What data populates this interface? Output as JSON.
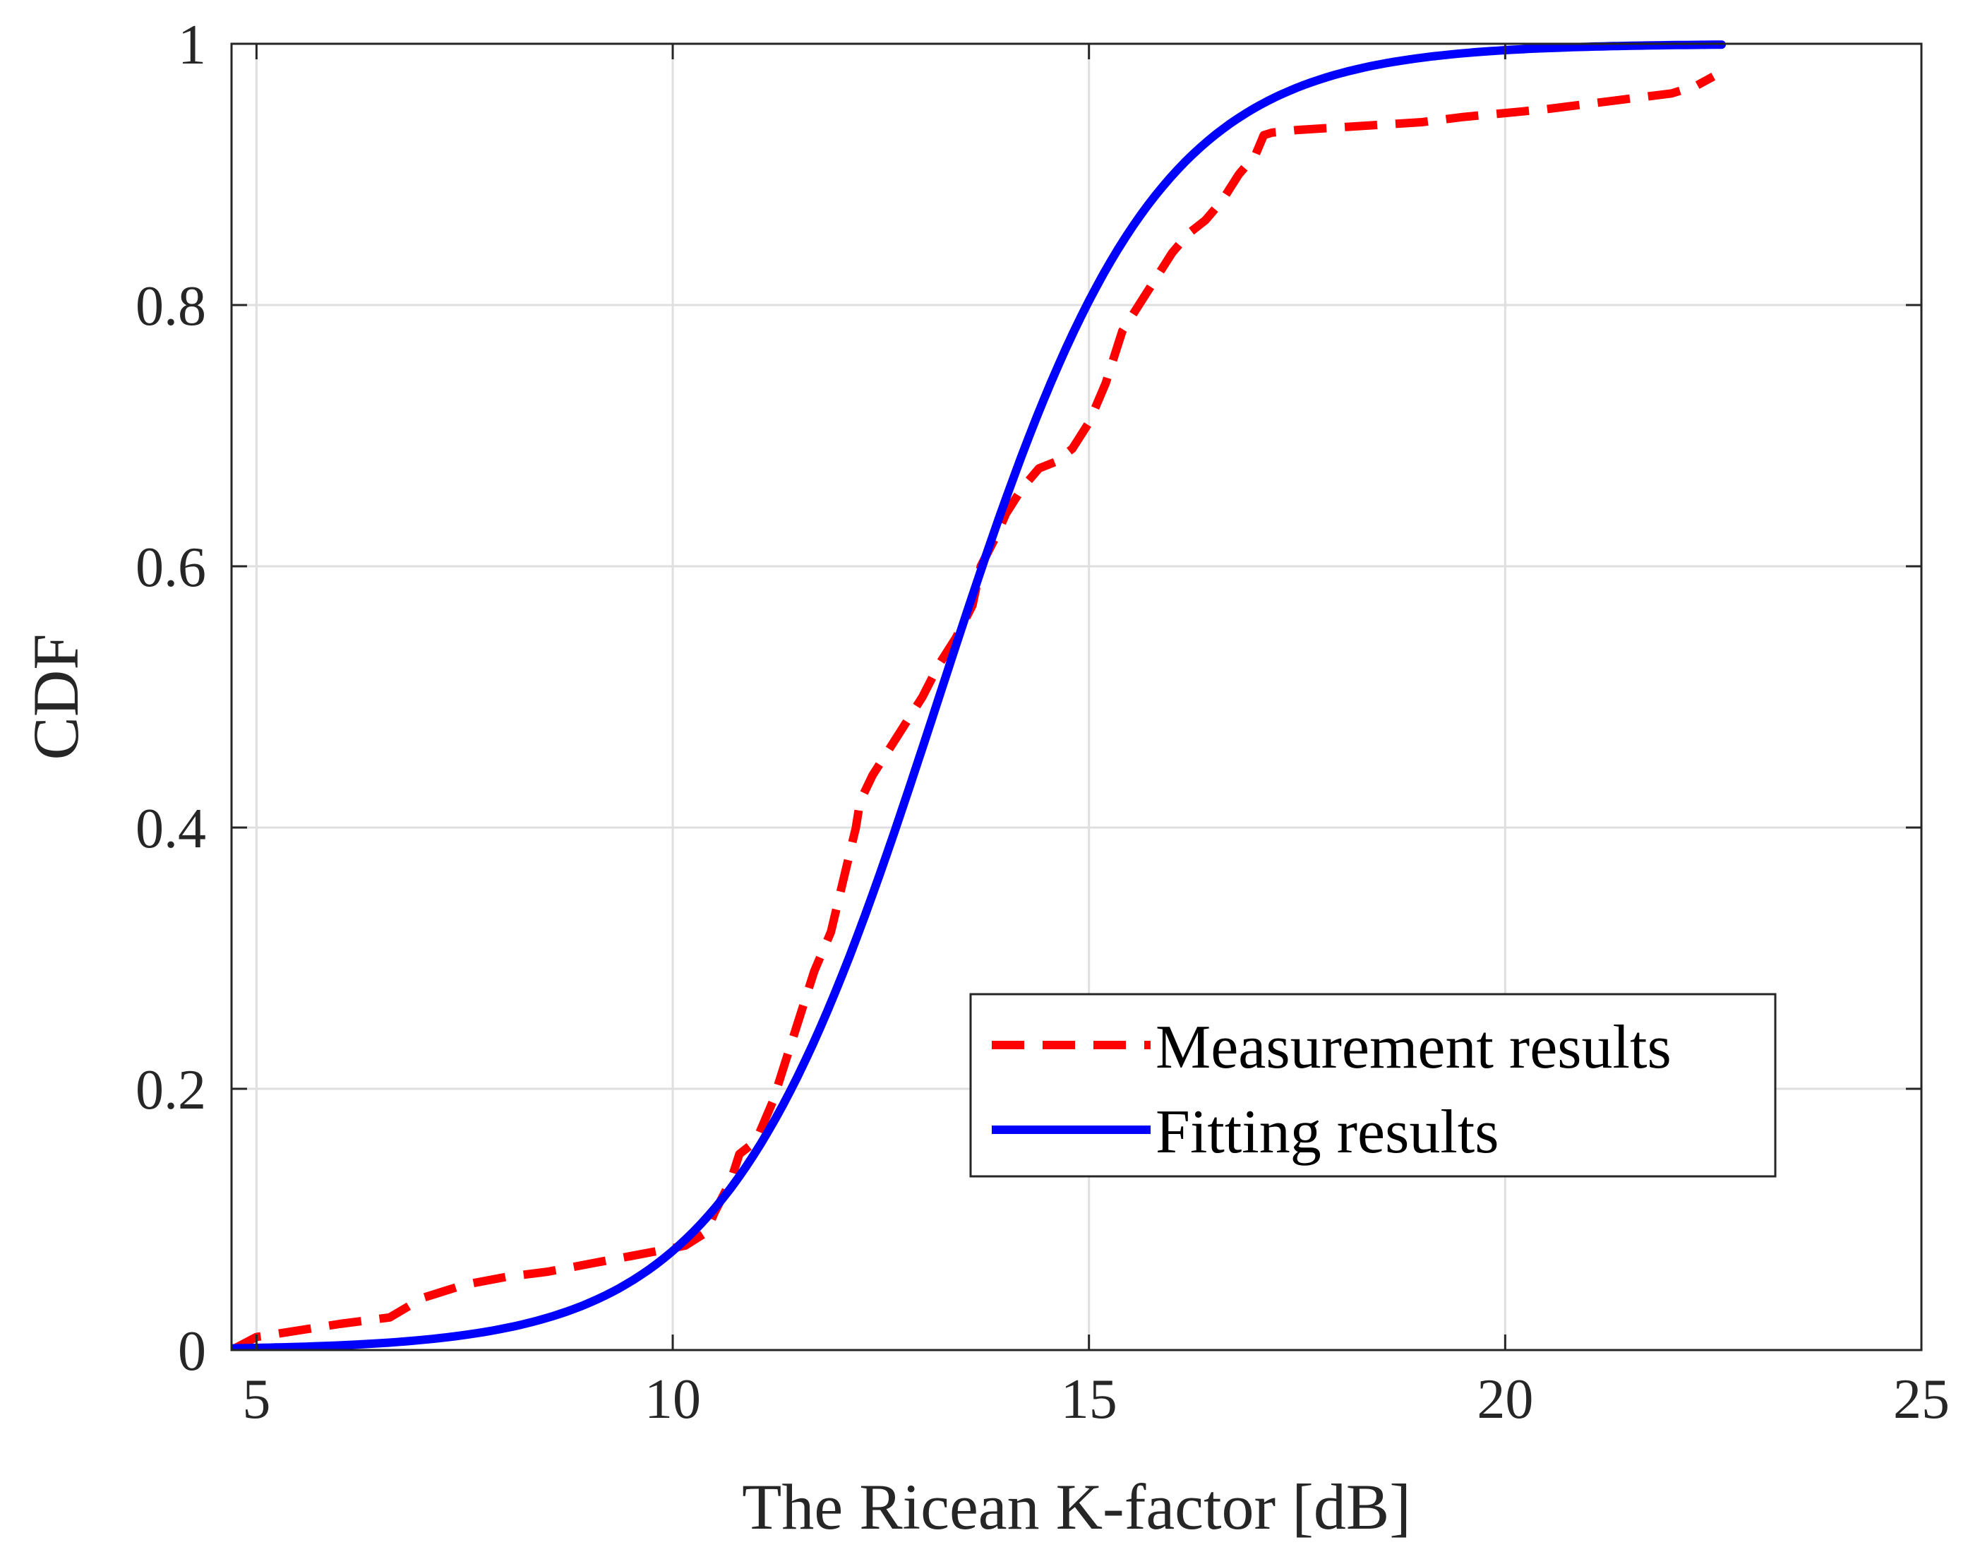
{
  "chart_data": {
    "type": "line",
    "title": "",
    "xlabel": "The Ricean K-factor [dB]",
    "ylabel": "CDF",
    "xlim": [
      4.7,
      25
    ],
    "ylim": [
      0,
      1
    ],
    "xticks": [
      5,
      10,
      15,
      20,
      25
    ],
    "yticks": [
      0,
      0.2,
      0.4,
      0.6,
      0.8,
      1
    ],
    "xtick_labels": [
      "5",
      "10",
      "15",
      "20",
      "25"
    ],
    "ytick_labels": [
      "0",
      "0.2",
      "0.4",
      "0.6",
      "0.8",
      "1"
    ],
    "grid": true,
    "legend_position": "bottom-right",
    "series": [
      {
        "name": "Measurement results",
        "color": "#ff0000",
        "style": "dashed",
        "x": [
          4.7,
          5.0,
          5.5,
          6.0,
          6.6,
          7.0,
          7.5,
          8.0,
          8.5,
          9.0,
          9.5,
          10.0,
          10.15,
          10.4,
          10.5,
          10.7,
          10.8,
          11.0,
          11.2,
          11.5,
          11.7,
          11.9,
          12.05,
          12.2,
          12.25,
          12.4,
          12.6,
          12.8,
          13.0,
          13.2,
          13.4,
          13.6,
          13.7,
          13.9,
          14.0,
          14.2,
          14.4,
          14.6,
          14.8,
          15.0,
          15.2,
          15.4,
          15.6,
          15.8,
          16.0,
          16.2,
          16.4,
          16.6,
          16.8,
          17.0,
          17.1,
          17.2,
          17.5,
          18.0,
          18.5,
          19.0,
          19.5,
          20.0,
          20.5,
          21.0,
          21.5,
          22.0,
          22.3,
          22.5
        ],
        "y": [
          0.0,
          0.01,
          0.015,
          0.02,
          0.025,
          0.04,
          0.05,
          0.056,
          0.06,
          0.066,
          0.072,
          0.078,
          0.08,
          0.09,
          0.105,
          0.13,
          0.15,
          0.16,
          0.19,
          0.25,
          0.29,
          0.32,
          0.36,
          0.4,
          0.42,
          0.44,
          0.46,
          0.48,
          0.5,
          0.525,
          0.545,
          0.57,
          0.6,
          0.625,
          0.64,
          0.66,
          0.675,
          0.68,
          0.69,
          0.71,
          0.74,
          0.78,
          0.8,
          0.82,
          0.84,
          0.855,
          0.865,
          0.88,
          0.9,
          0.915,
          0.93,
          0.932,
          0.934,
          0.936,
          0.938,
          0.94,
          0.944,
          0.947,
          0.95,
          0.954,
          0.958,
          0.962,
          0.968,
          0.975
        ]
      },
      {
        "name": "Fitting results",
        "color": "#0000ff",
        "style": "solid",
        "distribution": {
          "kind": "logistic",
          "mu": 13.2,
          "s": 1.28
        },
        "x_range": [
          4.7,
          22.6
        ]
      }
    ]
  }
}
